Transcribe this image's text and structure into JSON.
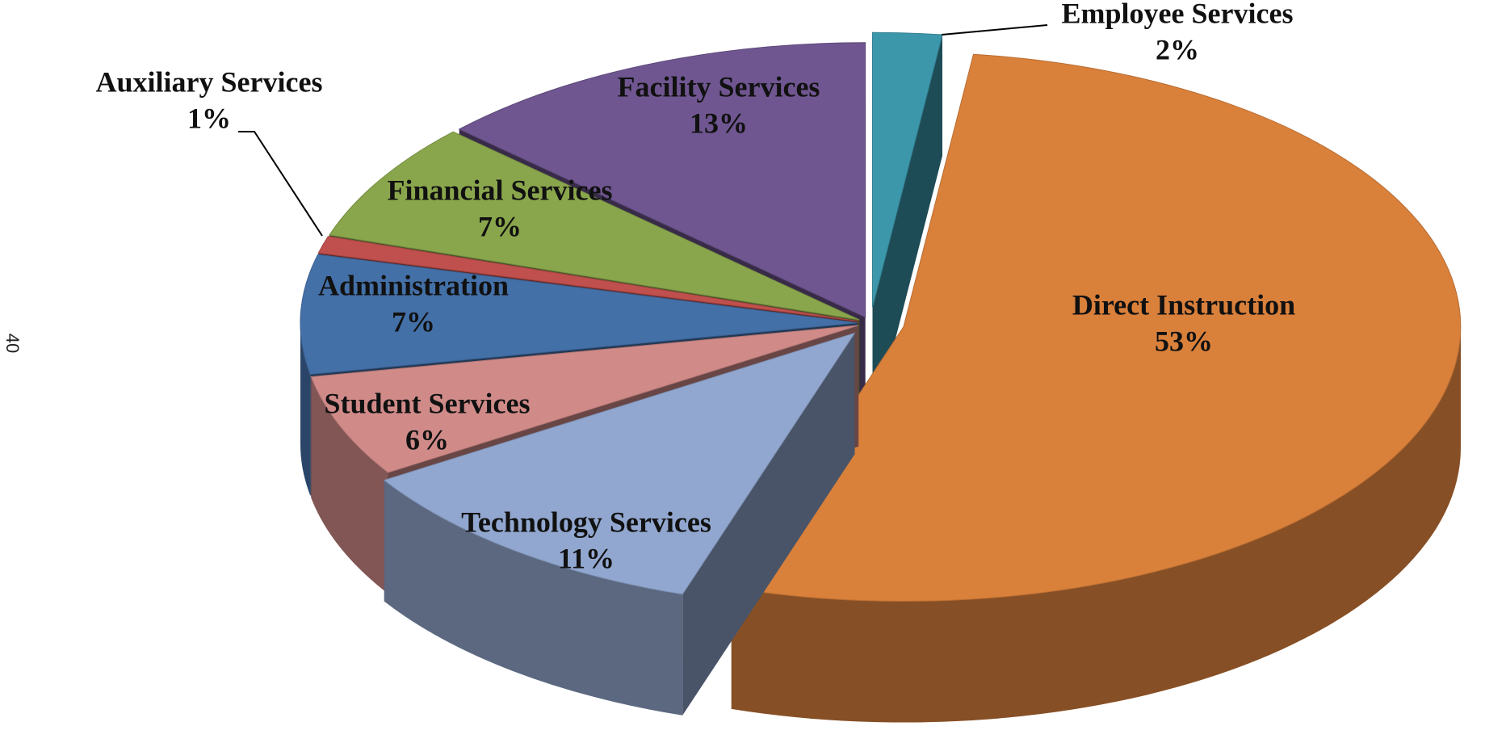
{
  "page_number": "40",
  "chart_data": {
    "type": "pie",
    "three_d": true,
    "categories": [
      "Employee Services",
      "Direct Instruction",
      "Technology Services",
      "Student Services",
      "Administration",
      "Auxiliary Services",
      "Financial Services",
      "Facility Services"
    ],
    "values": [
      2,
      53,
      11,
      6,
      7,
      1,
      7,
      13
    ],
    "value_labels": [
      "2%",
      "53%",
      "11%",
      "6%",
      "7%",
      "1%",
      "7%",
      "13%"
    ],
    "colors": [
      "#3c97ab",
      "#d9803b",
      "#92a7cf",
      "#d08b89",
      "#4470a8",
      "#c0504d",
      "#8aa64c",
      "#6f5690"
    ]
  }
}
